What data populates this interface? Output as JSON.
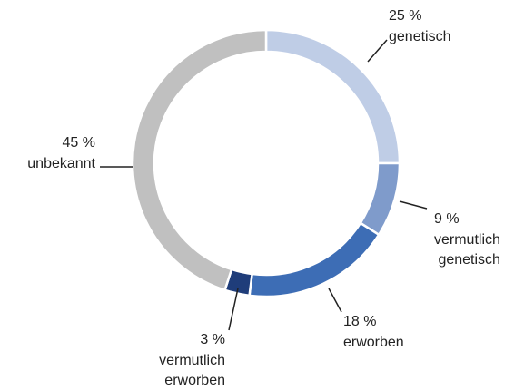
{
  "chart_data": {
    "type": "pie",
    "categories": [
      "genetisch",
      "vermutlich genetisch",
      "erworben",
      "vermutlich erworben",
      "unbekannt"
    ],
    "values": [
      25,
      9,
      18,
      3,
      45
    ],
    "value_labels": [
      "25 %",
      "9 %",
      "18 %",
      "3 %",
      "45 %"
    ],
    "colors": [
      "#bfcde6",
      "#7f9bcb",
      "#3d6db5",
      "#1f3d7a",
      "#c0c0c0"
    ],
    "donut": true
  }
}
